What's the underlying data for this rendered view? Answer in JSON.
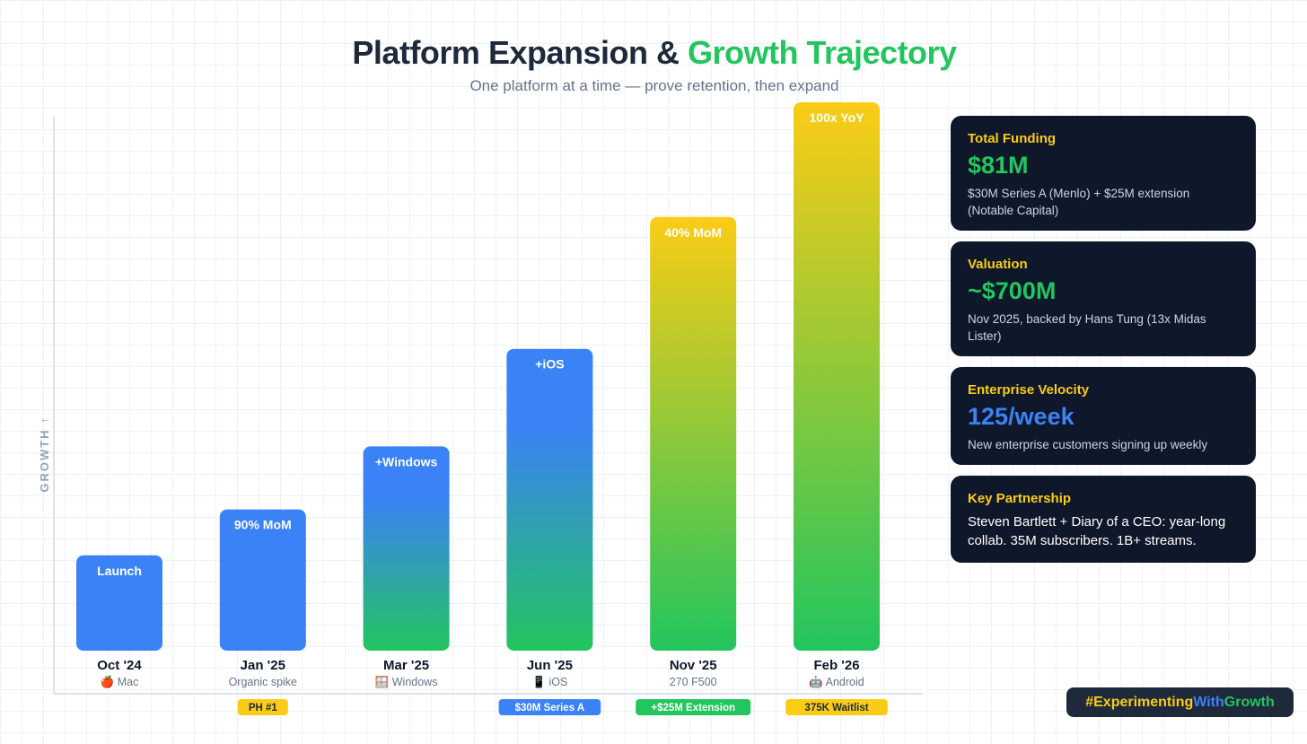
{
  "header": {
    "title_main": "Platform Expansion & ",
    "title_accent": "Growth Trajectory",
    "subtitle": "One platform at a time — prove retention, then expand"
  },
  "chart_data": {
    "type": "bar",
    "ylabel": "GROWTH ↑",
    "categories": [
      "Oct '24",
      "Jan '25",
      "Mar '25",
      "Jun '25",
      "Nov '25",
      "Feb '26"
    ],
    "sublabels": [
      "🍎 Mac",
      "Organic spike",
      "🪟 Windows",
      "📱 iOS",
      "270 F500",
      "🤖 Android"
    ],
    "values": [
      16,
      24,
      35,
      52,
      75,
      95
    ],
    "ylim": [
      0,
      100
    ],
    "bar_labels": [
      "Launch",
      "90% MoM",
      "+Windows",
      "+iOS",
      "40% MoM",
      "100x YoY"
    ],
    "bar_styles": [
      "blue",
      "blue",
      "blue-green",
      "blue-green",
      "yellow-green",
      "yellow-green"
    ],
    "milestones": [
      "",
      "PH #1",
      "",
      "$30M Series A",
      "+$25M Extension",
      "375K Waitlist"
    ],
    "milestone_colors": [
      "",
      "#facc15",
      "",
      "#3b82f6",
      "#22c55e",
      "#facc15"
    ],
    "milestone_text_colors": [
      "",
      "#1e293b",
      "",
      "#ffffff",
      "#ffffff",
      "#1e293b"
    ]
  },
  "colors": {
    "blue": "#3b82f6",
    "green": "#22c55e",
    "yellow": "#facc15",
    "axis": "#e2e8f0"
  },
  "cards": [
    {
      "label": "Total Funding",
      "value": "$81M",
      "value_color": "#22c55e",
      "desc": "$30M Series A (Menlo) + $25M extension (Notable Capital)"
    },
    {
      "label": "Valuation",
      "value": "~$700M",
      "value_color": "#22c55e",
      "desc": "Nov 2025, backed by Hans Tung (13x Midas Lister)"
    },
    {
      "label": "Enterprise Velocity",
      "value": "125/week",
      "value_color": "#3b82f6",
      "desc": "New enterprise customers signing up weekly"
    },
    {
      "label": "Key Partnership",
      "value": "",
      "value_color": "",
      "desc": "Steven Bartlett + Diary of a CEO: year-long collab. 35M subscribers. 1B+ streams."
    }
  ],
  "hashtag": {
    "part1": "#Experimenting",
    "part2": "With",
    "part3": "Growth"
  }
}
